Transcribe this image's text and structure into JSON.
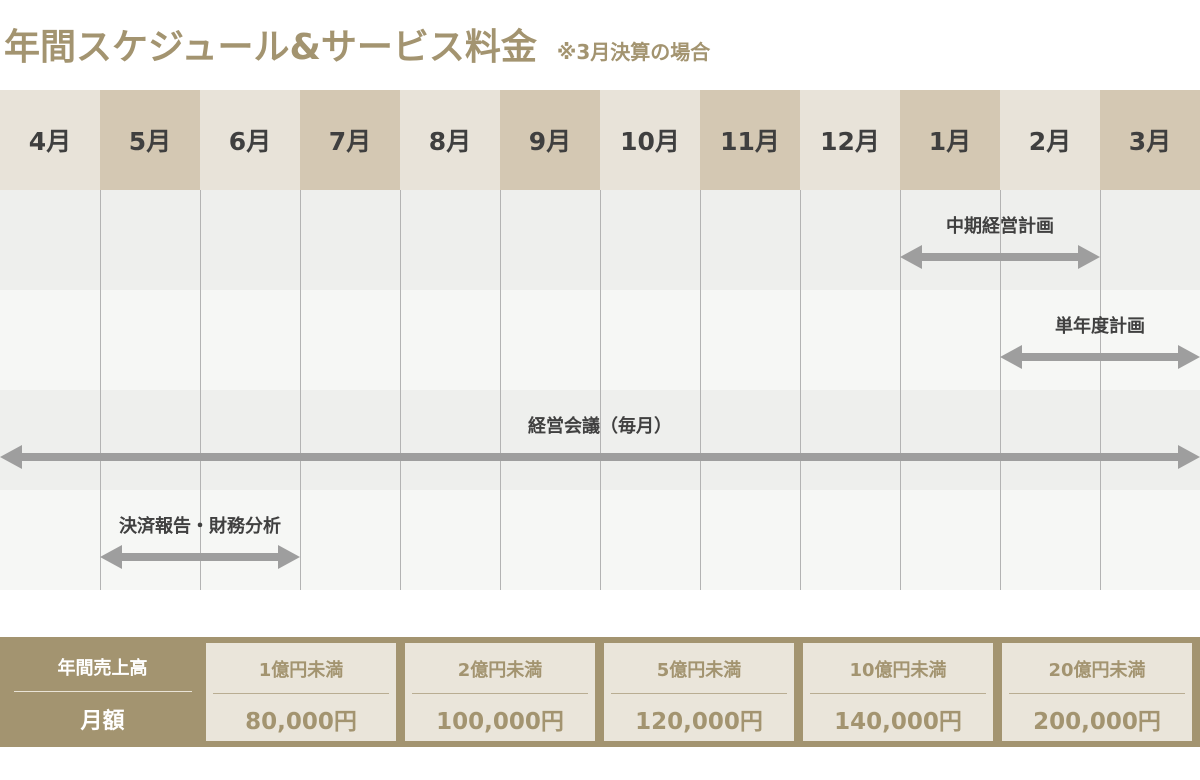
{
  "header": {
    "title": "年間スケジュール&サービス料金",
    "note": "※3月決算の場合"
  },
  "months": [
    "4月",
    "5月",
    "6月",
    "7月",
    "8月",
    "9月",
    "10月",
    "11月",
    "12月",
    "1月",
    "2月",
    "3月"
  ],
  "schedule": [
    {
      "label": "中期経営計画",
      "start_month": "1月",
      "end_month": "2月"
    },
    {
      "label": "単年度計画",
      "start_month": "2月",
      "end_month": "3月"
    },
    {
      "label": "経営会議（毎月）",
      "start_month": "4月",
      "end_month": "3月"
    },
    {
      "label": "決済報告・財務分析",
      "start_month": "5月",
      "end_month": "6月"
    }
  ],
  "pricing": {
    "row_label_sales": "年間売上高",
    "row_label_fee": "月額",
    "tiers": [
      {
        "category": "1億円未満",
        "price": "80,000円"
      },
      {
        "category": "2億円未満",
        "price": "100,000円"
      },
      {
        "category": "5億円未満",
        "price": "120,000円"
      },
      {
        "category": "10億円未満",
        "price": "140,000円"
      },
      {
        "category": "20億円未満",
        "price": "200,000円"
      }
    ]
  },
  "colors": {
    "accent": "#a39470",
    "month_light": "#e8e3d9",
    "month_dark": "#d4c8b3",
    "arrow": "#9e9e9e",
    "text": "#404040"
  }
}
